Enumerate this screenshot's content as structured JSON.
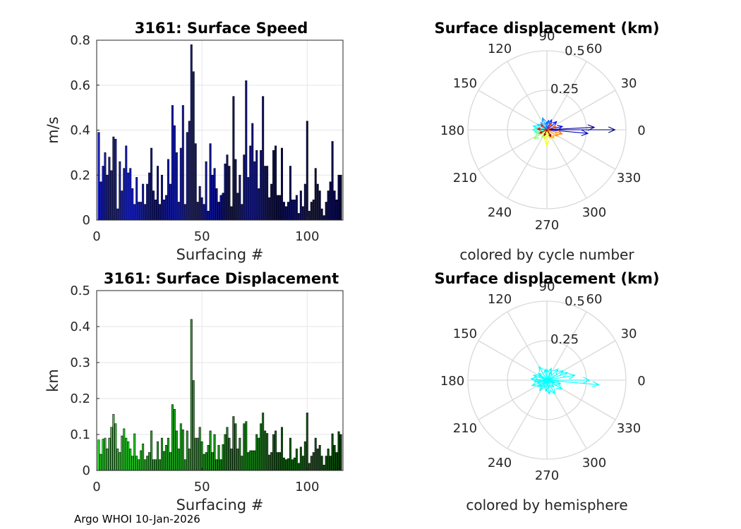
{
  "footer": "Argo WHOI 10-Jan-2026",
  "chart_data": [
    {
      "id": "speed",
      "type": "bar",
      "title": "3161: Surface Speed",
      "xlabel": "Surfacing #",
      "ylabel": "m/s",
      "xlim": [
        0,
        117
      ],
      "ylim": [
        0,
        0.8
      ],
      "xticks": [
        0,
        50,
        100
      ],
      "yticks": [
        0,
        0.2,
        0.4,
        0.6,
        0.8
      ],
      "ytick_labels": [
        "0",
        "0.2",
        "0.4",
        "0.6",
        "0.8"
      ],
      "grid": true,
      "colormap": "blue-to-navy by surfacing number",
      "x": [
        1,
        2,
        3,
        4,
        5,
        6,
        7,
        8,
        9,
        10,
        11,
        12,
        13,
        14,
        15,
        16,
        17,
        18,
        19,
        20,
        21,
        22,
        23,
        24,
        25,
        26,
        27,
        28,
        29,
        30,
        31,
        32,
        33,
        34,
        35,
        36,
        37,
        38,
        39,
        40,
        41,
        42,
        43,
        44,
        45,
        46,
        47,
        48,
        49,
        50,
        51,
        52,
        53,
        54,
        55,
        56,
        57,
        58,
        59,
        60,
        61,
        62,
        63,
        64,
        65,
        66,
        67,
        68,
        69,
        70,
        71,
        72,
        73,
        74,
        75,
        76,
        77,
        78,
        79,
        80,
        81,
        82,
        83,
        84,
        85,
        86,
        87,
        88,
        89,
        90,
        91,
        92,
        93,
        94,
        95,
        96,
        97,
        98,
        99,
        100,
        101,
        102,
        103,
        104,
        105,
        106,
        107,
        108,
        109,
        110,
        111,
        112,
        113,
        114,
        115,
        116
      ],
      "values": [
        0.39,
        0.17,
        0.24,
        0.3,
        0.2,
        0.28,
        0.22,
        0.37,
        0.36,
        0.05,
        0.26,
        0.13,
        0.23,
        0.33,
        0.21,
        0.23,
        0.14,
        0.07,
        0.19,
        0.08,
        0.08,
        0.16,
        0.07,
        0.16,
        0.21,
        0.32,
        0.13,
        0.09,
        0.24,
        0.07,
        0.2,
        0.09,
        0.11,
        0.27,
        0.16,
        0.51,
        0.42,
        0.3,
        0.08,
        0.32,
        0.51,
        0.07,
        0.39,
        0.44,
        0.78,
        0.66,
        0.34,
        0.08,
        0.15,
        0.1,
        0.07,
        0.26,
        0.04,
        0.34,
        0.2,
        0.23,
        0.14,
        0.08,
        0.11,
        0.12,
        0.25,
        0.29,
        0.24,
        0.06,
        0.55,
        0.27,
        0.12,
        0.2,
        0.07,
        0.29,
        0.62,
        0.19,
        0.33,
        0.43,
        0.26,
        0.31,
        0.14,
        0.31,
        0.55,
        0.24,
        0.24,
        0.1,
        0.16,
        0.31,
        0.33,
        0.11,
        0.11,
        0.32,
        0.08,
        0.06,
        0.08,
        0.24,
        0.09,
        0.09,
        0.11,
        0.03,
        0.13,
        0.06,
        0.16,
        0.44,
        0.04,
        0.08,
        0.09,
        0.23,
        0.16,
        0.13,
        0.05,
        0.02,
        0.08,
        0.13,
        0.17,
        0.35,
        0.13,
        0.09,
        0.2,
        0.2
      ]
    },
    {
      "id": "displacement",
      "type": "bar",
      "title": "3161: Surface Displacement",
      "xlabel": "Surfacing #",
      "ylabel": "km",
      "xlim": [
        0,
        117
      ],
      "ylim": [
        0,
        0.5
      ],
      "xticks": [
        0,
        50,
        100
      ],
      "yticks": [
        0,
        0.1,
        0.2,
        0.3,
        0.4,
        0.5
      ],
      "ytick_labels": [
        "0",
        "0.1",
        "0.2",
        "0.3",
        "0.4",
        "0.5"
      ],
      "grid": true,
      "colormap": "bright-green to dark-green by surfacing number",
      "x": [
        1,
        2,
        3,
        4,
        5,
        6,
        7,
        8,
        9,
        10,
        11,
        12,
        13,
        14,
        15,
        16,
        17,
        18,
        19,
        20,
        21,
        22,
        23,
        24,
        25,
        26,
        27,
        28,
        29,
        30,
        31,
        32,
        33,
        34,
        35,
        36,
        37,
        38,
        39,
        40,
        41,
        42,
        43,
        44,
        45,
        46,
        47,
        48,
        49,
        50,
        51,
        52,
        53,
        54,
        55,
        56,
        57,
        58,
        59,
        60,
        61,
        62,
        63,
        64,
        65,
        66,
        67,
        68,
        69,
        70,
        71,
        72,
        73,
        74,
        75,
        76,
        77,
        78,
        79,
        80,
        81,
        82,
        83,
        84,
        85,
        86,
        87,
        88,
        89,
        90,
        91,
        92,
        93,
        94,
        95,
        96,
        97,
        98,
        99,
        100,
        101,
        102,
        103,
        104,
        105,
        106,
        107,
        108,
        109,
        110,
        111,
        112,
        113,
        114,
        115,
        116
      ],
      "values": [
        0.085,
        0.045,
        0.087,
        0.09,
        0.06,
        0.09,
        0.12,
        0.156,
        0.13,
        0.06,
        0.05,
        0.096,
        0.116,
        0.09,
        0.08,
        0.06,
        0.04,
        0.102,
        0.04,
        0.03,
        0.055,
        0.074,
        0.03,
        0.04,
        0.05,
        0.11,
        0.03,
        0.03,
        0.08,
        0.03,
        0.09,
        0.053,
        0.07,
        0.09,
        0.05,
        0.183,
        0.17,
        0.11,
        0.06,
        0.13,
        0.113,
        0.03,
        0.11,
        0.06,
        0.42,
        0.25,
        0.09,
        0.09,
        0.12,
        0.08,
        0.045,
        0.05,
        0.07,
        0.11,
        0.05,
        0.1,
        0.03,
        0.07,
        0.03,
        0.072,
        0.1,
        0.12,
        0.09,
        0.06,
        0.15,
        0.13,
        0.06,
        0.09,
        0.04,
        0.13,
        0.136,
        0.05,
        0.055,
        0.055,
        0.055,
        0.1,
        0.09,
        0.13,
        0.16,
        0.11,
        0.103,
        0.043,
        0.05,
        0.1,
        0.11,
        0.05,
        0.05,
        0.12,
        0.035,
        0.03,
        0.033,
        0.09,
        0.03,
        0.035,
        0.06,
        0.02,
        0.065,
        0.04,
        0.08,
        0.16,
        0.02,
        0.04,
        0.05,
        0.09,
        0.06,
        0.07,
        0.04,
        0.015,
        0.04,
        0.06,
        0.04,
        0.102,
        0.07,
        0.05,
        0.108,
        0.1
      ]
    },
    {
      "id": "polar-cycle",
      "type": "polar-vector",
      "title": "Surface displacement (km)",
      "caption": "colored by cycle number",
      "rlim": [
        0,
        0.5
      ],
      "rticks": [
        0.25,
        0.5
      ],
      "rtick_labels": [
        "0.25",
        "0.5"
      ],
      "angle_labels": [
        "0",
        "30",
        "60",
        "90",
        "120",
        "150",
        "180",
        "210",
        "240",
        "270",
        "300",
        "330"
      ],
      "coloring": "cycle number (jet colormap)",
      "vectors_deg_km": [
        [
          0,
          0.43
        ],
        [
          3,
          0.3
        ],
        [
          -5,
          0.26
        ],
        [
          12,
          0.1
        ],
        [
          40,
          0.08
        ],
        [
          65,
          0.07
        ],
        [
          80,
          0.06
        ],
        [
          95,
          0.05
        ],
        [
          110,
          0.08
        ],
        [
          130,
          0.06
        ],
        [
          150,
          0.07
        ],
        [
          165,
          0.09
        ],
        [
          180,
          0.09
        ],
        [
          190,
          0.08
        ],
        [
          200,
          0.07
        ],
        [
          215,
          0.1
        ],
        [
          235,
          0.06
        ],
        [
          255,
          0.06
        ],
        [
          270,
          0.1
        ],
        [
          290,
          0.06
        ],
        [
          310,
          0.07
        ],
        [
          330,
          0.08
        ],
        [
          345,
          0.1
        ],
        [
          20,
          0.06
        ],
        [
          55,
          0.05
        ],
        [
          140,
          0.05
        ],
        [
          175,
          0.06
        ],
        [
          205,
          0.05
        ],
        [
          245,
          0.04
        ],
        [
          300,
          0.05
        ]
      ]
    },
    {
      "id": "polar-hemisphere",
      "type": "polar-vector",
      "title": "Surface displacement (km)",
      "caption": "colored by hemisphere",
      "rlim": [
        0,
        0.5
      ],
      "rticks": [
        0.25,
        0.5
      ],
      "rtick_labels": [
        "0.25",
        "0.5"
      ],
      "angle_labels": [
        "0",
        "30",
        "60",
        "90",
        "120",
        "150",
        "180",
        "210",
        "240",
        "270",
        "300",
        "330"
      ],
      "coloring": "hemisphere (single cyan)",
      "color": "#00ffff",
      "vectors_deg_km": [
        [
          -5,
          0.33
        ],
        [
          0,
          0.27
        ],
        [
          10,
          0.18
        ],
        [
          30,
          0.12
        ],
        [
          45,
          0.1
        ],
        [
          70,
          0.08
        ],
        [
          90,
          0.07
        ],
        [
          100,
          0.07
        ],
        [
          120,
          0.1
        ],
        [
          140,
          0.07
        ],
        [
          160,
          0.09
        ],
        [
          175,
          0.1
        ],
        [
          185,
          0.08
        ],
        [
          200,
          0.1
        ],
        [
          215,
          0.07
        ],
        [
          235,
          0.08
        ],
        [
          250,
          0.05
        ],
        [
          265,
          0.07
        ],
        [
          280,
          0.09
        ],
        [
          300,
          0.1
        ],
        [
          315,
          0.06
        ],
        [
          330,
          0.11
        ],
        [
          345,
          0.09
        ],
        [
          20,
          0.14
        ],
        [
          60,
          0.06
        ],
        [
          150,
          0.06
        ],
        [
          190,
          0.06
        ],
        [
          225,
          0.06
        ],
        [
          285,
          0.05
        ],
        [
          340,
          0.05
        ]
      ]
    }
  ]
}
